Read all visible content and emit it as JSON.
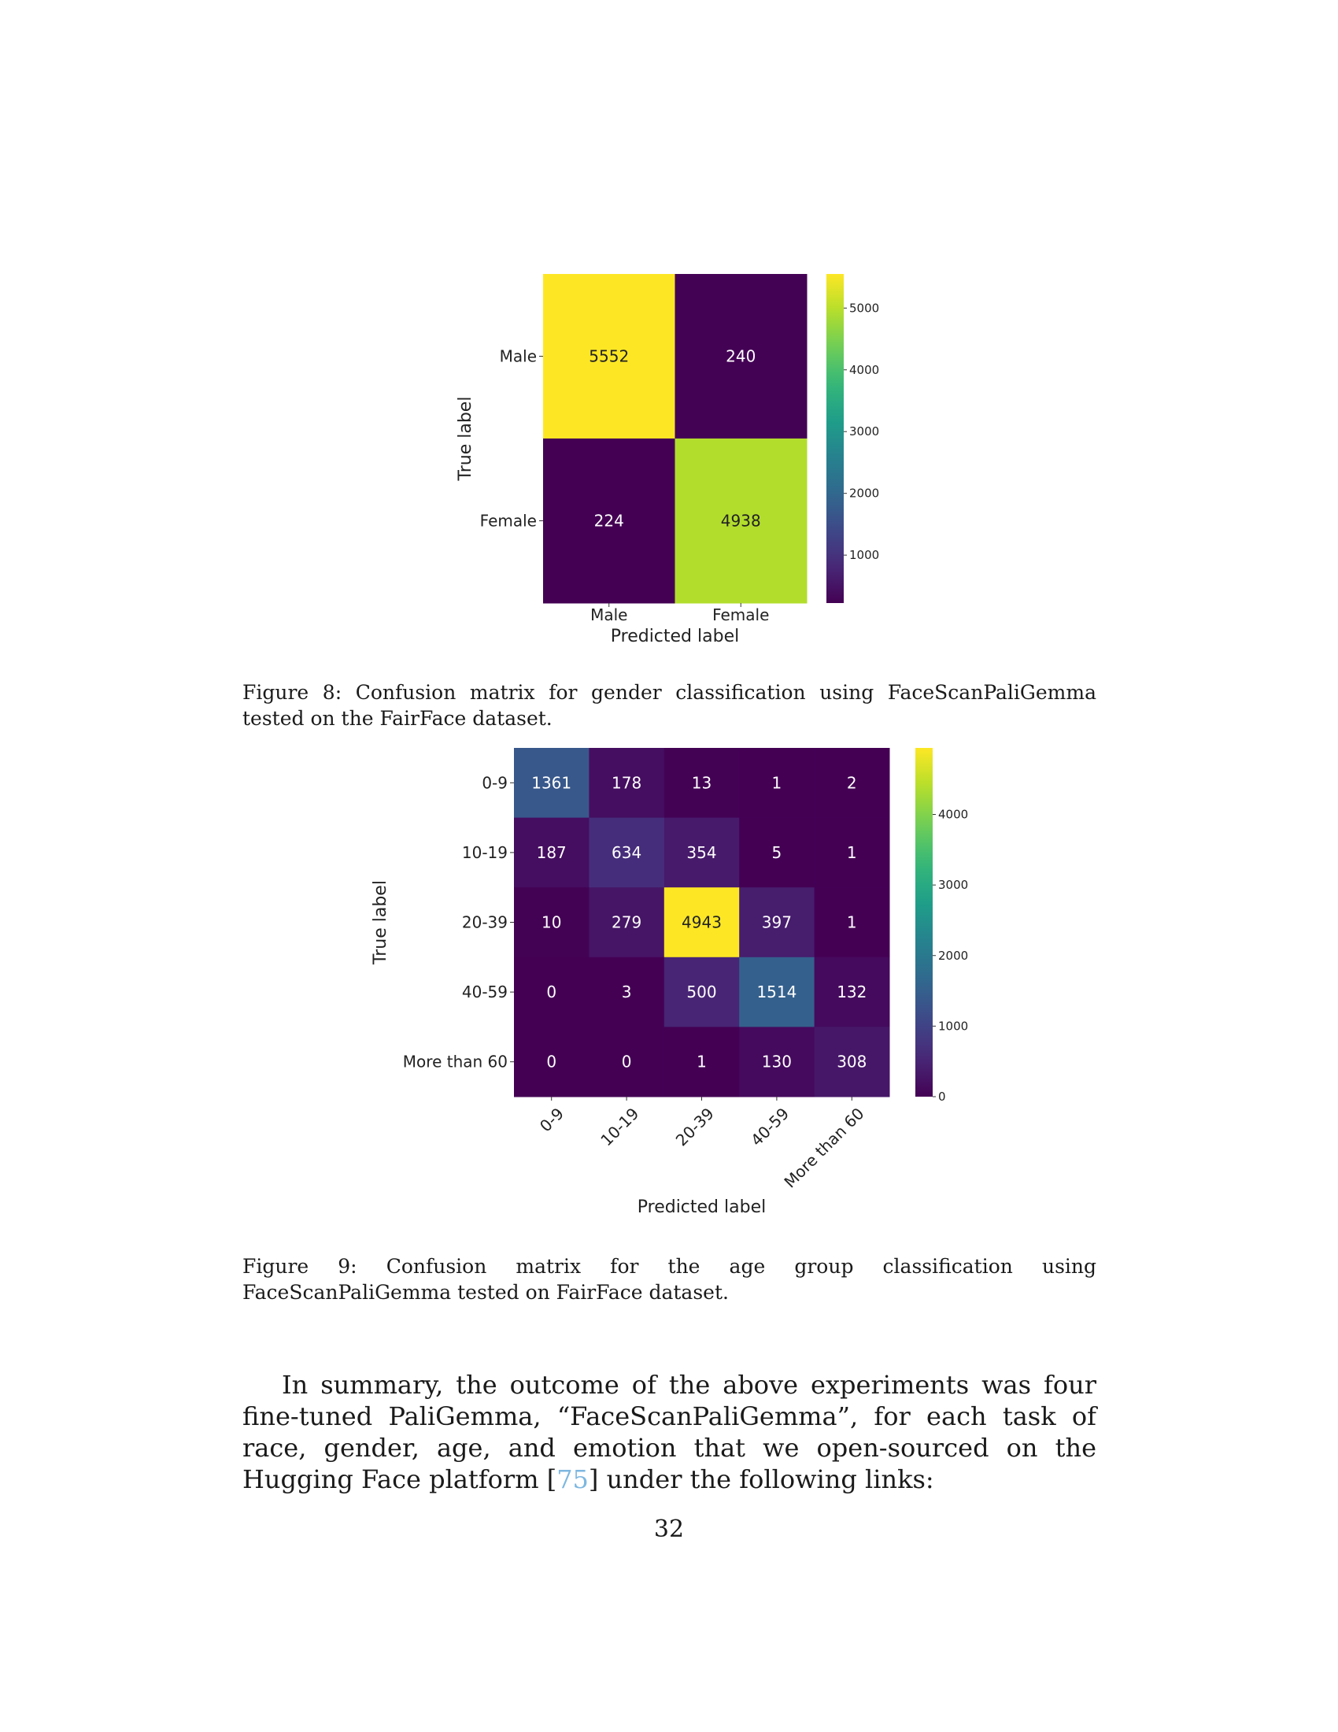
{
  "figures": [
    {
      "caption": "Figure 8: Confusion matrix for gender classification using FaceScanPaliGemma tested on the FairFace dataset.",
      "chart_data": {
        "type": "heatmap",
        "title": "",
        "xlabel": "Predicted label",
        "ylabel": "True label",
        "x_categories": [
          "Male",
          "Female"
        ],
        "y_categories": [
          "Male",
          "Female"
        ],
        "values": [
          [
            5552,
            240
          ],
          [
            224,
            4938
          ]
        ],
        "colormap": "viridis",
        "color_range": [
          224,
          5552
        ],
        "colorbar_ticks": [
          1000,
          2000,
          3000,
          4000,
          5000
        ],
        "grid": false,
        "legend": "colorbar-right"
      }
    },
    {
      "caption": "Figure 9: Confusion matrix for the age group classification using FaceScanPaliGemma tested on FairFace dataset.",
      "chart_data": {
        "type": "heatmap",
        "title": "",
        "xlabel": "Predicted label",
        "ylabel": "True label",
        "x_categories": [
          "0-9",
          "10-19",
          "20-39",
          "40-59",
          "More than 60"
        ],
        "y_categories": [
          "0-9",
          "10-19",
          "20-39",
          "40-59",
          "More than 60"
        ],
        "values": [
          [
            1361,
            178,
            13,
            1,
            2
          ],
          [
            187,
            634,
            354,
            5,
            1
          ],
          [
            10,
            279,
            4943,
            397,
            1
          ],
          [
            0,
            3,
            500,
            1514,
            132
          ],
          [
            0,
            0,
            1,
            130,
            308
          ]
        ],
        "colormap": "viridis",
        "color_range": [
          0,
          4943
        ],
        "colorbar_ticks": [
          0,
          1000,
          2000,
          3000,
          4000
        ],
        "x_tick_rotation": 45,
        "grid": false,
        "legend": "colorbar-right"
      }
    }
  ],
  "paragraph": {
    "before": "In summary, the outcome of the above experiments was four fine-tuned PaliGemma, “FaceScanPaliGemma”, for each task of race, gender, age, and emotion that we open-sourced on the Hugging Face platform [",
    "citation": "75",
    "after": "] under the following links:"
  },
  "page_number": "32"
}
